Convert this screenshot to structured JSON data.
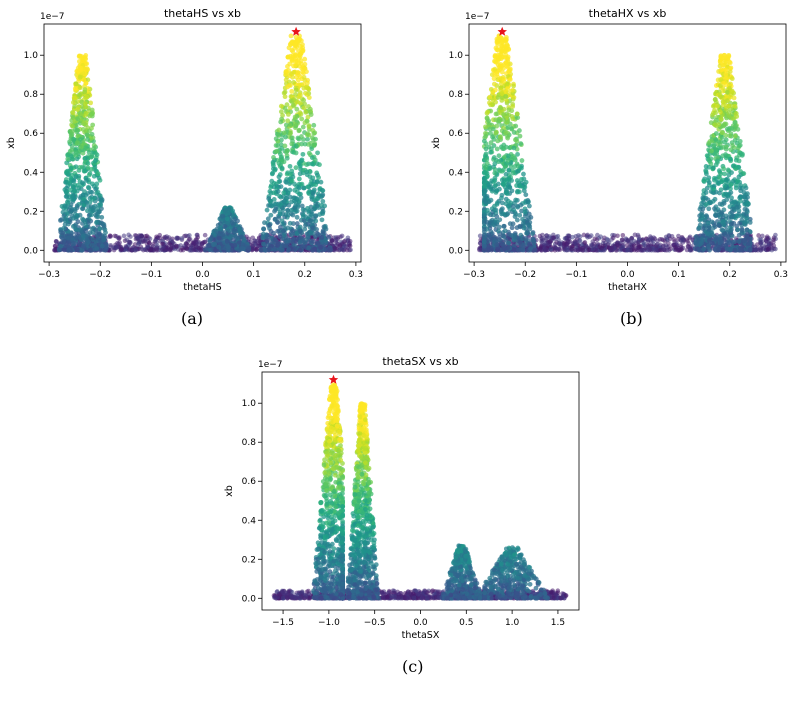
{
  "chart_data": [
    {
      "type": "scatter",
      "title": "thetaHS vs xb",
      "xlabel": "thetaHS",
      "ylabel": "xb",
      "y_offset_text": "1e−7",
      "xlim": [
        -0.31,
        0.31
      ],
      "ylim": [
        -0.06,
        1.16
      ],
      "xticks": [
        -0.3,
        -0.2,
        -0.1,
        0.0,
        0.1,
        0.2,
        0.3
      ],
      "xtick_labels": [
        "−0.3",
        "−0.2",
        "−0.1",
        "0.0",
        "0.1",
        "0.2",
        "0.3"
      ],
      "yticks": [
        0.0,
        0.2,
        0.4,
        0.6,
        0.8,
        1.0
      ],
      "ytick_labels": [
        "0.0",
        "0.2",
        "0.4",
        "0.6",
        "0.8",
        "1.0"
      ],
      "grid": false,
      "colormap": "viridis",
      "background_band": {
        "x": [
          -0.29,
          0.29
        ],
        "y": [
          0.0,
          0.08
        ]
      },
      "clusters": [
        {
          "x_min": -0.28,
          "x_max": -0.16,
          "peak_x": -0.235,
          "peak_y": 1.0,
          "base_width": 0.1
        },
        {
          "x_min": 0.0,
          "x_max": 0.09,
          "peak_x": 0.05,
          "peak_y": 0.22,
          "base_width": 0.09
        },
        {
          "x_min": 0.08,
          "x_max": 0.26,
          "peak_x": 0.183,
          "peak_y": 1.1,
          "base_width": 0.14
        }
      ],
      "best_point": {
        "x": 0.183,
        "y": 1.12
      }
    },
    {
      "type": "scatter",
      "title": "thetaHX vs xb",
      "xlabel": "thetaHX",
      "ylabel": "xb",
      "y_offset_text": "1e−7",
      "xlim": [
        -0.31,
        0.31
      ],
      "ylim": [
        -0.06,
        1.16
      ],
      "xticks": [
        -0.3,
        -0.2,
        -0.1,
        0.0,
        0.1,
        0.2,
        0.3
      ],
      "xtick_labels": [
        "−0.3",
        "−0.2",
        "−0.1",
        "0.0",
        "0.1",
        "0.2",
        "0.3"
      ],
      "yticks": [
        0.0,
        0.2,
        0.4,
        0.6,
        0.8,
        1.0
      ],
      "ytick_labels": [
        "0.0",
        "0.2",
        "0.4",
        "0.6",
        "0.8",
        "1.0"
      ],
      "grid": false,
      "colormap": "viridis",
      "background_band": {
        "x": [
          -0.29,
          0.29
        ],
        "y": [
          0.0,
          0.08
        ]
      },
      "clusters": [
        {
          "x_min": -0.28,
          "x_max": -0.13,
          "peak_x": -0.245,
          "peak_y": 1.1,
          "base_width": 0.13
        },
        {
          "x_min": 0.06,
          "x_max": 0.24,
          "peak_x": 0.19,
          "peak_y": 1.0,
          "base_width": 0.12
        }
      ],
      "best_point": {
        "x": -0.245,
        "y": 1.12
      }
    },
    {
      "type": "scatter",
      "title": "thetaSX vs xb",
      "xlabel": "thetaSX",
      "ylabel": "xb",
      "y_offset_text": "1e−7",
      "xlim": [
        -1.73,
        1.73
      ],
      "ylim": [
        -0.06,
        1.16
      ],
      "xticks": [
        -1.5,
        -1.0,
        -0.5,
        0.0,
        0.5,
        1.0,
        1.5
      ],
      "xtick_labels": [
        "−1.5",
        "−1.0",
        "−0.5",
        "0.0",
        "0.5",
        "1.0",
        "1.5"
      ],
      "yticks": [
        0.0,
        0.2,
        0.4,
        0.6,
        0.8,
        1.0
      ],
      "ytick_labels": [
        "0.0",
        "0.2",
        "0.4",
        "0.6",
        "0.8",
        "1.0"
      ],
      "grid": false,
      "colormap": "viridis",
      "background_band": {
        "x": [
          -1.6,
          1.6
        ],
        "y": [
          0.0,
          0.04
        ]
      },
      "clusters": [
        {
          "x_min": -1.35,
          "x_max": -0.85,
          "peak_x": -0.95,
          "peak_y": 1.1,
          "base_width": 0.45
        },
        {
          "x_min": -0.85,
          "x_max": -0.4,
          "peak_x": -0.63,
          "peak_y": 1.0,
          "base_width": 0.35
        },
        {
          "x_min": 0.2,
          "x_max": 0.7,
          "peak_x": 0.45,
          "peak_y": 0.27,
          "base_width": 0.45
        },
        {
          "x_min": 0.7,
          "x_max": 1.5,
          "peak_x": 1.0,
          "peak_y": 0.26,
          "base_width": 0.8
        }
      ],
      "best_point": {
        "x": -0.95,
        "y": 1.12
      }
    }
  ],
  "panel_labels": [
    "(a)",
    "(b)",
    "(c)"
  ]
}
